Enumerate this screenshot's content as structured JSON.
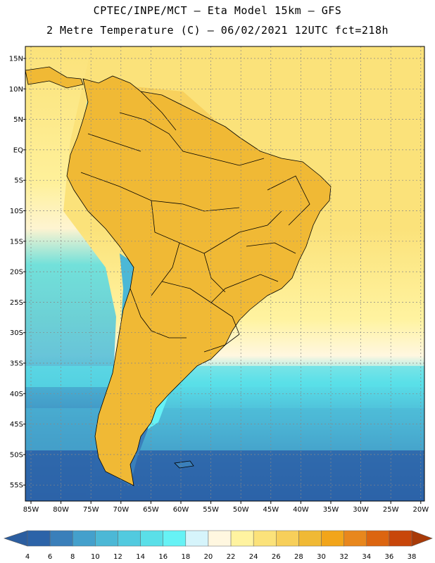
{
  "title": {
    "line1": "CPTEC/INPE/MCT –  Eta Model 15km – GFS",
    "line2": "2 Metre Temperature (C) – 06/02/2021 12UTC fct=218h"
  },
  "map": {
    "lat_labels": [
      "15N",
      "10N",
      "5N",
      "EQ",
      "5S",
      "10S",
      "15S",
      "20S",
      "25S",
      "30S",
      "35S",
      "40S",
      "45S",
      "50S",
      "55S"
    ],
    "lon_labels": [
      "85W",
      "80W",
      "75W",
      "70W",
      "65W",
      "60W",
      "55W",
      "50W",
      "45W",
      "40W",
      "35W",
      "30W",
      "25W",
      "20W"
    ],
    "region": "South America",
    "gridlines": true
  },
  "legend": {
    "values": [
      "4",
      "6",
      "8",
      "10",
      "12",
      "14",
      "16",
      "18",
      "20",
      "22",
      "24",
      "26",
      "28",
      "30",
      "32",
      "34",
      "36",
      "38"
    ],
    "colors": [
      "#2c63a8",
      "#3a7fba",
      "#44a0cc",
      "#4cb8d6",
      "#52cadf",
      "#5adfe8",
      "#66f2f5",
      "#d6f4fb",
      "#fff7e0",
      "#fff3a0",
      "#fbe27a",
      "#f7cf5a",
      "#f0b935",
      "#f2a51a",
      "#e8871d",
      "#dc6510",
      "#c8460a"
    ],
    "arrow_left_color": "#2c5ea0",
    "arrow_right_color": "#a83a08"
  }
}
